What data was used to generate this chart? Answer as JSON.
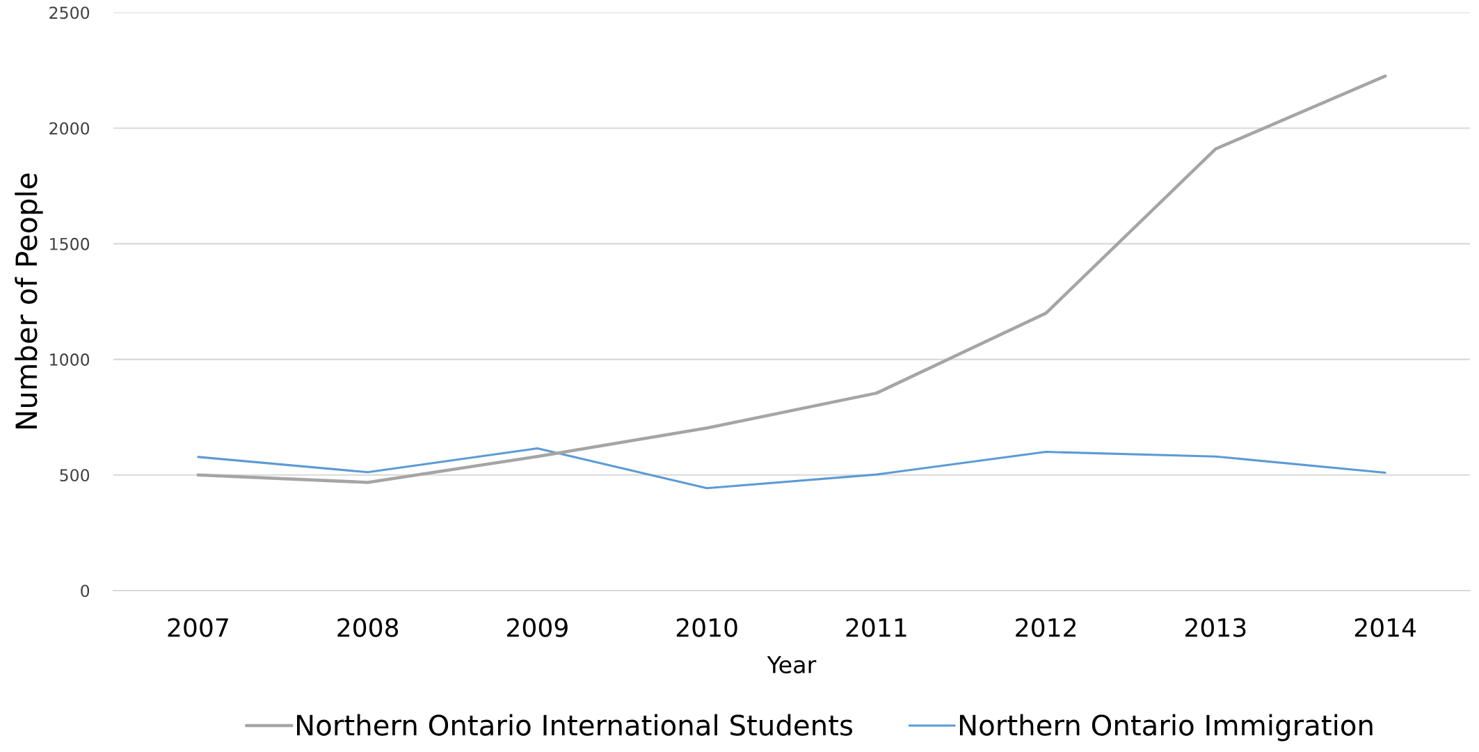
{
  "chart_data": {
    "type": "line",
    "xlabel": "Year",
    "ylabel": "Number of People",
    "categories": [
      "2007",
      "2008",
      "2009",
      "2010",
      "2011",
      "2012",
      "2013",
      "2014"
    ],
    "series": [
      {
        "name": "Northern Ontario International Students",
        "color": "#a5a5a5",
        "values": [
          500,
          468,
          580,
          703,
          854,
          1200,
          1910,
          2225
        ]
      },
      {
        "name": "Northern Ontario Immigration",
        "color": "#5b9bd5",
        "values": [
          578,
          512,
          615,
          443,
          502,
          600,
          580,
          510
        ]
      }
    ],
    "ylim": [
      0,
      2500
    ],
    "yticks": [
      0,
      500,
      1000,
      1500,
      2000,
      2500
    ],
    "grid": "y",
    "legend": "bottom",
    "marker": "none",
    "line_style": "solid"
  }
}
